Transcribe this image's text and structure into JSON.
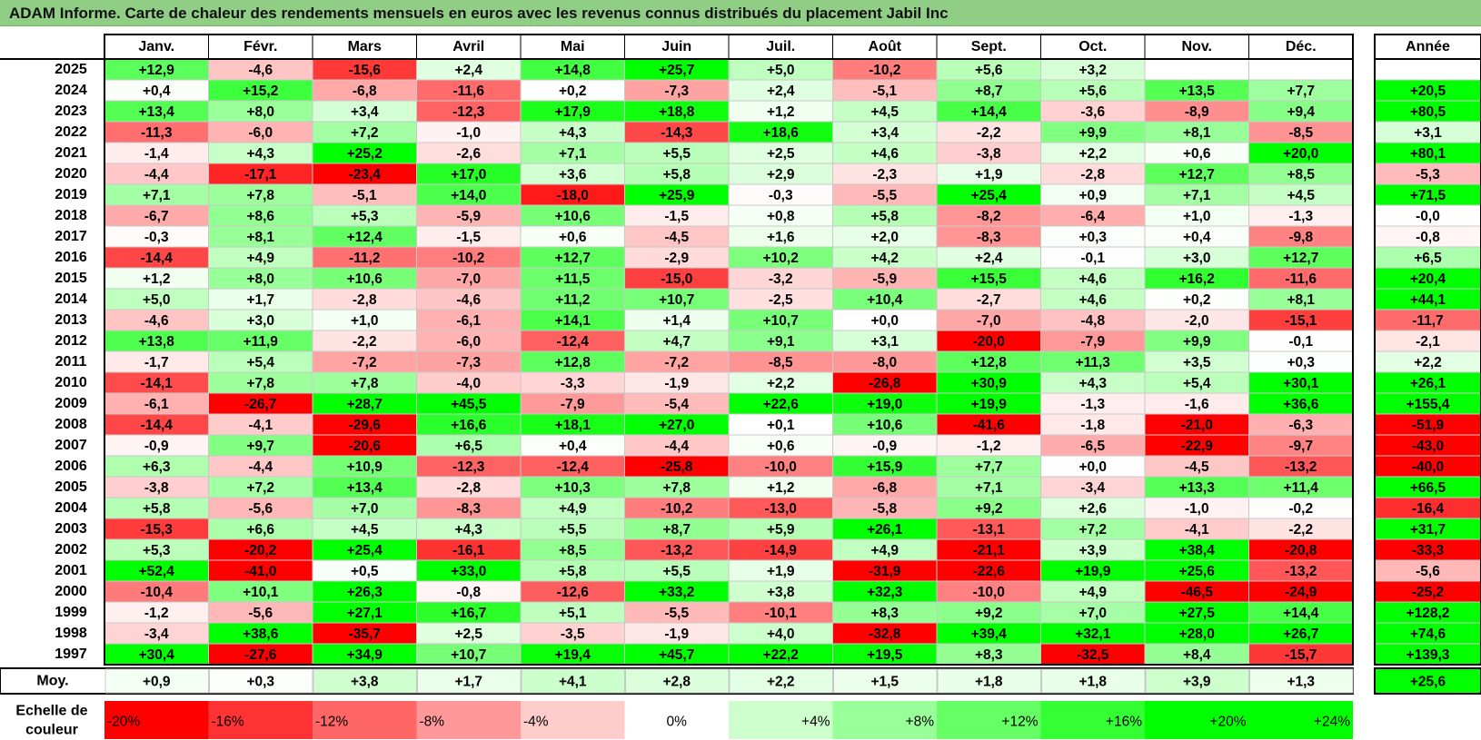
{
  "chart_data": {
    "type": "heatmap",
    "title": "ADAM Informe. Carte de chaleur des rendements mensuels en euros avec les revenus connus distribués du placement Jabil Inc",
    "months": [
      "Janv.",
      "Févr.",
      "Mars",
      "Avril",
      "Mai",
      "Juin",
      "Juil.",
      "Août",
      "Sept.",
      "Oct.",
      "Nov.",
      "Déc."
    ],
    "year_header": "Année",
    "avg_label": "Moy.",
    "rows": [
      {
        "year": "2025",
        "values": [
          12.9,
          -4.6,
          -15.6,
          2.4,
          14.8,
          25.7,
          5.0,
          -10.2,
          5.6,
          3.2,
          null,
          null
        ],
        "annual": null
      },
      {
        "year": "2024",
        "values": [
          0.4,
          15.2,
          -6.8,
          -11.6,
          0.2,
          -7.3,
          2.4,
          -5.1,
          8.7,
          5.6,
          13.5,
          7.7
        ],
        "annual": 20.5
      },
      {
        "year": "2023",
        "values": [
          13.4,
          8.0,
          3.4,
          -12.3,
          17.9,
          18.8,
          1.2,
          4.5,
          14.4,
          -3.6,
          -8.9,
          9.4
        ],
        "annual": 80.5
      },
      {
        "year": "2022",
        "values": [
          -11.3,
          -6.0,
          7.2,
          -1.0,
          4.3,
          -14.3,
          18.6,
          3.4,
          -2.2,
          9.9,
          8.1,
          -8.5
        ],
        "annual": 3.1
      },
      {
        "year": "2021",
        "values": [
          -1.4,
          4.3,
          25.2,
          -2.6,
          7.1,
          5.5,
          2.5,
          4.6,
          -3.8,
          2.2,
          0.6,
          20.0
        ],
        "annual": 80.1
      },
      {
        "year": "2020",
        "values": [
          -4.4,
          -17.1,
          -23.4,
          17.0,
          3.6,
          5.8,
          2.9,
          -2.3,
          1.9,
          -2.8,
          12.7,
          8.5
        ],
        "annual": -5.3
      },
      {
        "year": "2019",
        "values": [
          7.1,
          7.8,
          -5.1,
          14.0,
          -18.0,
          25.9,
          -0.3,
          -5.5,
          25.4,
          0.9,
          7.1,
          4.5
        ],
        "annual": 71.5
      },
      {
        "year": "2018",
        "values": [
          -6.7,
          8.6,
          5.3,
          -5.9,
          10.6,
          -1.5,
          0.8,
          5.8,
          -8.2,
          -6.4,
          1.0,
          -1.3
        ],
        "annual": -0.0
      },
      {
        "year": "2017",
        "values": [
          -0.3,
          8.1,
          12.4,
          -1.5,
          0.6,
          -4.5,
          1.6,
          2.0,
          -8.3,
          0.3,
          0.4,
          -9.8
        ],
        "annual": -0.8
      },
      {
        "year": "2016",
        "values": [
          -14.4,
          4.9,
          -11.2,
          -10.2,
          12.7,
          -2.9,
          10.2,
          4.2,
          2.4,
          -0.1,
          3.0,
          12.7
        ],
        "annual": 6.5
      },
      {
        "year": "2015",
        "values": [
          1.2,
          8.0,
          10.6,
          -7.0,
          11.5,
          -15.0,
          -3.2,
          -5.9,
          15.5,
          4.6,
          16.2,
          -11.6
        ],
        "annual": 20.4
      },
      {
        "year": "2014",
        "values": [
          5.0,
          1.7,
          -2.8,
          -4.6,
          11.2,
          10.7,
          -2.5,
          10.4,
          -2.7,
          4.6,
          0.2,
          8.1
        ],
        "annual": 44.1
      },
      {
        "year": "2013",
        "values": [
          -4.6,
          3.0,
          1.0,
          -6.1,
          14.1,
          1.4,
          10.7,
          0.0,
          -7.0,
          -4.8,
          -2.0,
          -15.1
        ],
        "annual": -11.7
      },
      {
        "year": "2012",
        "values": [
          13.8,
          11.9,
          -2.2,
          -6.0,
          -12.4,
          4.7,
          9.1,
          3.1,
          -20.0,
          -7.9,
          9.9,
          -0.1
        ],
        "annual": -2.1
      },
      {
        "year": "2011",
        "values": [
          -1.7,
          5.4,
          -7.2,
          -7.3,
          12.8,
          -7.2,
          -8.5,
          -8.0,
          12.8,
          11.3,
          3.5,
          0.3
        ],
        "annual": 2.2
      },
      {
        "year": "2010",
        "values": [
          -14.1,
          7.8,
          7.8,
          -4.0,
          -3.3,
          -1.9,
          2.2,
          -26.8,
          30.9,
          4.3,
          5.4,
          30.1
        ],
        "annual": 26.1
      },
      {
        "year": "2009",
        "values": [
          -6.1,
          -26.7,
          28.7,
          45.5,
          -7.9,
          -5.4,
          22.6,
          19.0,
          19.9,
          -1.3,
          -1.6,
          36.6
        ],
        "annual": 155.4
      },
      {
        "year": "2008",
        "values": [
          -14.4,
          -4.1,
          -29.6,
          16.6,
          18.1,
          27.0,
          0.1,
          10.6,
          -41.6,
          -1.8,
          -21.0,
          -6.3
        ],
        "annual": -51.9
      },
      {
        "year": "2007",
        "values": [
          -0.9,
          9.7,
          -20.6,
          6.5,
          0.4,
          -4.4,
          0.6,
          -0.9,
          -1.2,
          -6.5,
          -22.9,
          -9.7
        ],
        "annual": -43.0
      },
      {
        "year": "2006",
        "values": [
          6.3,
          -4.4,
          10.9,
          -12.3,
          -12.4,
          -25.8,
          -10.0,
          15.9,
          7.7,
          0.0,
          -4.5,
          -13.2
        ],
        "annual": -40.0
      },
      {
        "year": "2005",
        "values": [
          -3.8,
          7.2,
          13.4,
          -2.8,
          10.3,
          7.8,
          1.2,
          -6.8,
          7.1,
          -3.4,
          13.3,
          11.4
        ],
        "annual": 66.5
      },
      {
        "year": "2004",
        "values": [
          5.8,
          -5.6,
          7.0,
          -8.3,
          4.9,
          -10.2,
          -13.0,
          -5.8,
          9.2,
          2.6,
          -1.0,
          -0.2
        ],
        "annual": -16.4
      },
      {
        "year": "2003",
        "values": [
          -15.3,
          6.6,
          4.5,
          4.3,
          5.5,
          8.7,
          5.9,
          26.1,
          -13.1,
          7.2,
          -4.1,
          -2.2
        ],
        "annual": 31.7
      },
      {
        "year": "2002",
        "values": [
          5.3,
          -20.2,
          25.4,
          -16.1,
          8.5,
          -13.2,
          -14.9,
          4.9,
          -21.1,
          3.9,
          38.4,
          -20.8
        ],
        "annual": -33.3
      },
      {
        "year": "2001",
        "values": [
          52.4,
          -41.0,
          0.5,
          33.0,
          5.8,
          5.5,
          1.9,
          -31.9,
          -22.6,
          19.9,
          25.6,
          -13.2
        ],
        "annual": -5.6
      },
      {
        "year": "2000",
        "values": [
          -10.4,
          10.1,
          26.3,
          -0.8,
          -12.6,
          33.2,
          3.8,
          32.3,
          -10.0,
          4.9,
          -46.5,
          -24.9
        ],
        "annual": -25.2
      },
      {
        "year": "1999",
        "values": [
          -1.2,
          -5.6,
          27.1,
          16.7,
          5.1,
          -5.5,
          -10.1,
          8.3,
          9.2,
          7.0,
          27.5,
          14.4
        ],
        "annual": 128.2
      },
      {
        "year": "1998",
        "values": [
          -3.4,
          38.6,
          -35.7,
          2.5,
          -3.5,
          -1.9,
          4.0,
          -32.8,
          39.4,
          32.1,
          28.0,
          26.7
        ],
        "annual": 74.6
      },
      {
        "year": "1997",
        "values": [
          30.4,
          -27.6,
          34.9,
          10.7,
          19.4,
          45.7,
          22.2,
          19.5,
          8.3,
          -32.5,
          8.4,
          -15.7
        ],
        "annual": 139.3
      }
    ],
    "averages": [
      0.9,
      0.3,
      3.8,
      1.7,
      4.1,
      2.8,
      2.2,
      1.5,
      1.8,
      1.8,
      3.9,
      1.3
    ],
    "average_annual": 25.6,
    "scale_label": [
      "Echelle de",
      "couleur"
    ],
    "scale": [
      {
        "value": -20,
        "label": "-20%"
      },
      {
        "value": -16,
        "label": "-16%"
      },
      {
        "value": -12,
        "label": "-12%"
      },
      {
        "value": -8,
        "label": "-8%"
      },
      {
        "value": -4,
        "label": "-4%"
      },
      {
        "value": 0,
        "label": "0%"
      },
      {
        "value": 4,
        "label": "+4%"
      },
      {
        "value": 8,
        "label": "+8%"
      },
      {
        "value": 12,
        "label": "+12%"
      },
      {
        "value": 16,
        "label": "+16%"
      },
      {
        "value": 20,
        "label": "+20%"
      },
      {
        "value": 24,
        "label": "+24%"
      }
    ],
    "colors": {
      "negative": "#ff0000",
      "neutral": "#ffffff",
      "positive": "#00ff00",
      "title_bg": "#8fce84"
    }
  }
}
